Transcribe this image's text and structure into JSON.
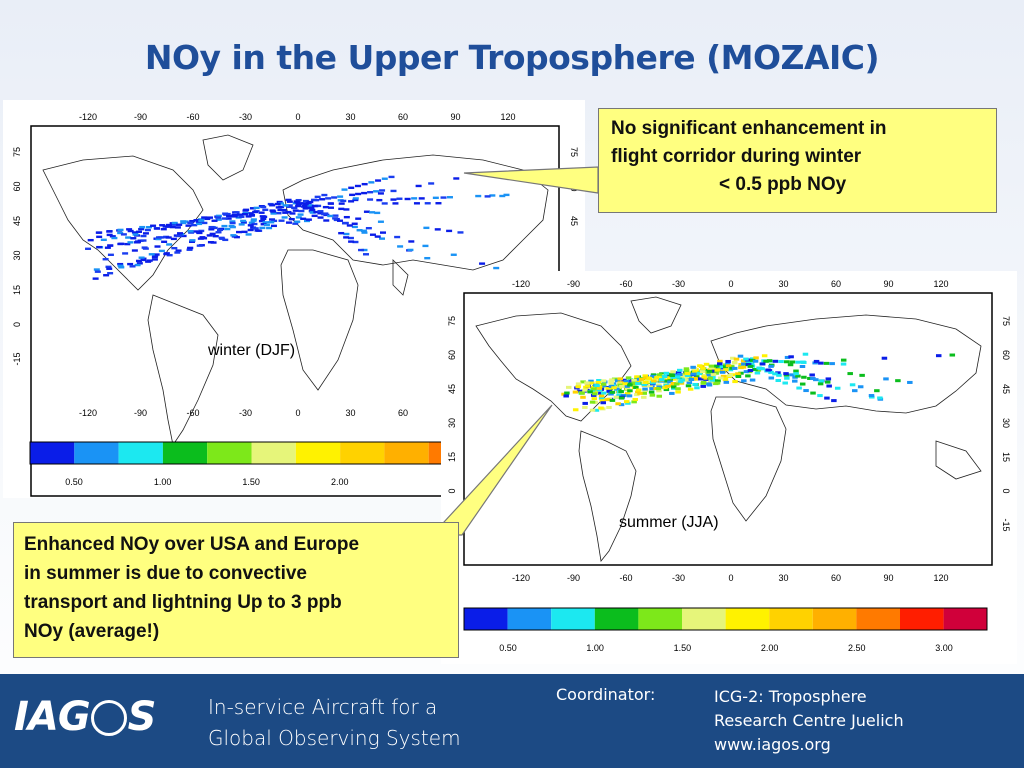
{
  "title": "NOy in the Upper Troposphere (MOZAIC)",
  "winter_map": {
    "season_label": "winter (DJF)",
    "lon_ticks": [
      "-120",
      "-90",
      "-60",
      "-30",
      "0",
      "30",
      "60",
      "90",
      "120"
    ],
    "lat_ticks": [
      "75",
      "60",
      "45",
      "30",
      "15",
      "0",
      "-15"
    ],
    "colorbar_labels": [
      "0.50",
      "1.00",
      "1.50",
      "2.00"
    ]
  },
  "summer_map": {
    "season_label": "summer (JJA)",
    "lon_ticks": [
      "-120",
      "-90",
      "-60",
      "-30",
      "0",
      "30",
      "60",
      "90",
      "120"
    ],
    "lat_ticks": [
      "75",
      "60",
      "45",
      "30",
      "15",
      "0",
      "-15"
    ],
    "colorbar_labels": [
      "0.50",
      "1.00",
      "1.50",
      "2.00",
      "2.50",
      "3.00"
    ]
  },
  "colorbar_colors": [
    "#0a1de8",
    "#1a93f5",
    "#1ce8f0",
    "#0bbd1d",
    "#7de81a",
    "#e6f57a",
    "#fff200",
    "#ffd200",
    "#ffb000",
    "#ff7a00",
    "#ff1e00",
    "#d0003a"
  ],
  "callout_winter": {
    "line1": "No significant enhancement in",
    "line2": "flight corridor during winter",
    "line3": "< 0.5 ppb NOy"
  },
  "callout_summer": {
    "line1": "Enhanced NOy over USA and Europe",
    "line2": "in summer is due to convective",
    "line3": "transport and lightning Up to 3 ppb",
    "line4": "NOy (average!)"
  },
  "footer": {
    "logo_left": "IAG",
    "logo_right": "S",
    "tagline_line1": "In-service Aircraft for a",
    "tagline_line2": "Global Observing System",
    "coordinator_label": "Coordinator:",
    "org_line1": "ICG-2: Troposphere",
    "org_line2": "Research Centre Juelich",
    "org_line3": "www.iagos.org"
  }
}
